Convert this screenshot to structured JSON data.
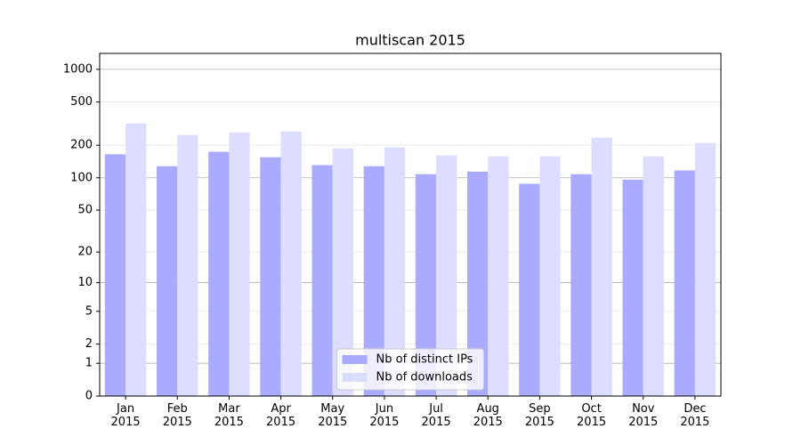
{
  "chart_data": {
    "type": "bar",
    "title": "multiscan 2015",
    "categories": [
      "Jan\n2015",
      "Feb\n2015",
      "Mar\n2015",
      "Apr\n2015",
      "May\n2015",
      "Jun\n2015",
      "Jul\n2015",
      "Aug\n2015",
      "Sep\n2015",
      "Oct\n2015",
      "Nov\n2015",
      "Dec\n2015"
    ],
    "series": [
      {
        "name": "Nb of distinct IPs",
        "color": "#aaaaff",
        "values": [
          165,
          128,
          174,
          155,
          131,
          128,
          108,
          114,
          88,
          108,
          96,
          117
        ]
      },
      {
        "name": "Nb of downloads",
        "color": "#ddddff",
        "values": [
          318,
          249,
          263,
          268,
          187,
          191,
          161,
          158,
          158,
          235,
          158,
          210
        ]
      }
    ],
    "yscale": "log1p",
    "ylim": [
      0,
      1400
    ],
    "yticks": [
      0,
      1,
      2,
      5,
      10,
      20,
      50,
      100,
      200,
      500,
      1000
    ],
    "grid": true,
    "legend": "lower center"
  }
}
